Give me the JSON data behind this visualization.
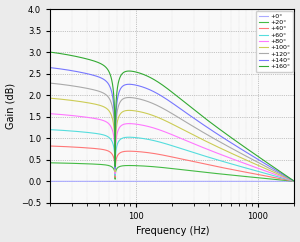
{
  "xlabel": "Frequency (Hz)",
  "ylabel": "Gain (dB)",
  "xlim": [
    20,
    2000
  ],
  "ylim": [
    -0.5,
    4.0
  ],
  "yticks": [
    -0.5,
    0.0,
    0.5,
    1.0,
    1.5,
    2.0,
    2.5,
    3.0,
    3.5,
    4.0
  ],
  "legend_labels": [
    "+0°",
    "+20°",
    "+40°",
    "+60°",
    "+80°",
    "+100°",
    "+120°",
    "+140°",
    "+160°"
  ],
  "line_colors": [
    "#aaaaff",
    "#44bb44",
    "#ff7777",
    "#55dddd",
    "#ff77ff",
    "#cccc55",
    "#aaaaaa",
    "#7777ff",
    "#33aa33"
  ],
  "figsize": [
    3.0,
    2.42
  ],
  "dpi": 100,
  "f_res": 68.0,
  "f_peak": 135.0,
  "Q_res": 3.5,
  "scales": [
    0.0,
    0.43,
    0.82,
    1.2,
    1.57,
    1.93,
    2.28,
    2.64,
    3.0
  ]
}
